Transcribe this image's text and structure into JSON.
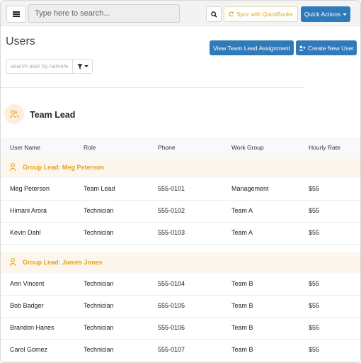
{
  "topbar": {
    "search_placeholder": "Type here to search...",
    "sync_label": "Sync with QuickBooks",
    "quick_actions_label": "Quick Actions"
  },
  "page": {
    "title": "Users",
    "view_team_lead_label": "View Team Lead Assignment",
    "create_user_label": "Create New User",
    "filter_placeholder": "search user by name/w"
  },
  "section": {
    "title": "Team Lead"
  },
  "table": {
    "columns": [
      "User Name",
      "Role",
      "Phone",
      "Work Group",
      "Hourly Rate"
    ],
    "groups": [
      {
        "label": "Group Lead: Meg Peterson",
        "rows": [
          [
            "Meg Peterson",
            "Team Lead",
            "555-0101",
            "Management",
            "$55"
          ],
          [
            "Himani Arora",
            "Technician",
            "555-0102",
            "Team A",
            "$55"
          ],
          [
            "Kevin Dahl",
            "Technician",
            "555-0103",
            "Team A",
            "$55"
          ]
        ]
      },
      {
        "label": "Group Lead: James Jones",
        "rows": [
          [
            "Ann Vincent",
            "Technician",
            "555-0104",
            "Team B",
            "$55"
          ],
          [
            "Bob Badger",
            "Technician",
            "555-0105",
            "Team B",
            "$55"
          ],
          [
            "Brandon Hanes",
            "Technician",
            "555-0106",
            "Team B",
            "$55"
          ],
          [
            "Carol Gomez",
            "Technician",
            "555-0107",
            "Team B",
            "$55"
          ]
        ]
      }
    ]
  },
  "colors": {
    "primary": "#2f7ab8",
    "accent": "#e8a21a",
    "group_bg": "#fdf6ec"
  },
  "icons": {
    "menu": "hamburger-icon",
    "search": "search-icon",
    "sync": "refresh-icon",
    "create_user": "user-plus-icon",
    "filter": "filter-icon",
    "section": "users-icon",
    "group": "user-icon"
  }
}
